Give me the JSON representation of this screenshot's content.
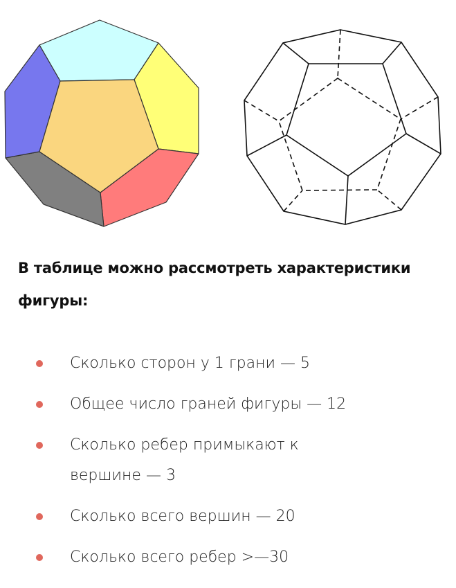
{
  "figures": {
    "colored": {
      "name": "dodecahedron-colored",
      "colors": {
        "top": "#ccffff",
        "right": "#ffff77",
        "center": "#fad67f",
        "bottom_right": "#ff7b7b",
        "bottom_left": "#808080",
        "left": "#7777ee"
      }
    },
    "wireframe": {
      "name": "dodecahedron-wireframe",
      "visible_edges": "solid",
      "hidden_edges": "dashed"
    }
  },
  "heading": {
    "text": "В таблице можно рассмотреть характеристики фигуры:"
  },
  "bullet_color": "#e0675c",
  "items": [
    {
      "text": "Сколько сторон у 1 грани — 5"
    },
    {
      "text": "Общее число граней фигуры — 12"
    },
    {
      "text": "Сколько ребер примыкают к вершине — 3"
    },
    {
      "text": "Сколько всего вершин — 20"
    },
    {
      "text": "Сколько всего ребер >—30"
    }
  ]
}
